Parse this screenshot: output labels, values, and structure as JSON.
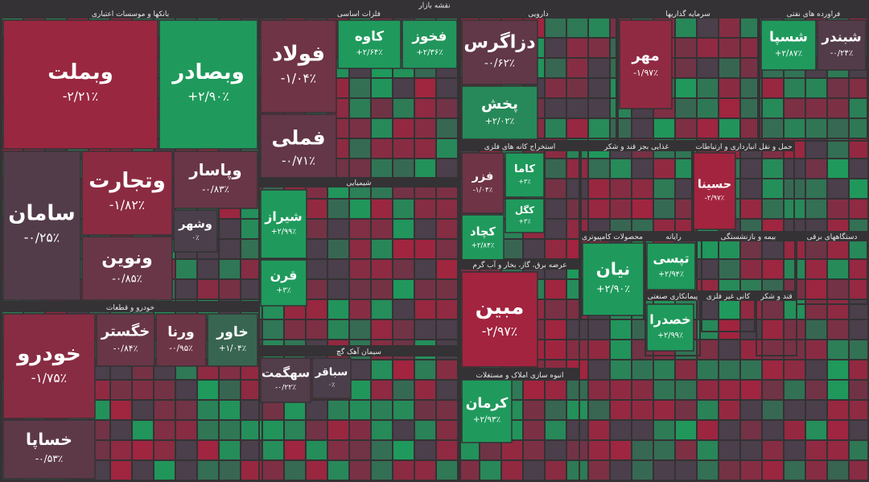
{
  "title": "نقشه بازار",
  "sectors": [
    {
      "name": "بانکها و موسسات اعتباری",
      "tiles": [
        {
          "name": "وبملت",
          "change": -2.21,
          "change_label": "-۲/۲۱٪"
        },
        {
          "name": "وبصادر",
          "change": 2.9,
          "change_label": "+۲/۹۰٪"
        },
        {
          "name": "وتجارت",
          "change": -1.82,
          "change_label": "-۱/۸۲٪"
        },
        {
          "name": "سامان",
          "change": -0.25,
          "change_label": "-۰/۲۵٪"
        },
        {
          "name": "ونوین",
          "change": -0.85,
          "change_label": "-۰/۸۵٪"
        },
        {
          "name": "وپاسار",
          "change": -0.83,
          "change_label": "-۰/۸۳٪"
        },
        {
          "name": "وشهر",
          "change": 0,
          "change_label": "۰٪"
        }
      ]
    },
    {
      "name": "فلزات اساسی",
      "tiles": [
        {
          "name": "فولاد",
          "change": -1.04,
          "change_label": "-۱/۰۴٪"
        },
        {
          "name": "فملی",
          "change": -0.71,
          "change_label": "-۰/۷۱٪"
        },
        {
          "name": "کاوه",
          "change": 2.64,
          "change_label": "+۲/۶۴٪"
        },
        {
          "name": "فخوز",
          "change": 2.36,
          "change_label": "+۲/۳۶٪"
        }
      ]
    },
    {
      "name": "دارویی",
      "tiles": [
        {
          "name": "دزاگرس",
          "change": -0.62,
          "change_label": "-۰/۶۲٪"
        },
        {
          "name": "پخش",
          "change": 2.02,
          "change_label": "+۲/۰۲٪"
        }
      ]
    },
    {
      "name": "سرمایه گذاریها",
      "tiles": [
        {
          "name": "مهر",
          "change": -1.97,
          "change_label": "-۱/۹۷٪"
        }
      ]
    },
    {
      "name": "فراورده های نفتی",
      "tiles": [
        {
          "name": "شسپا",
          "change": 2.87,
          "change_label": "+۲/۸۷٪"
        },
        {
          "name": "شبندر",
          "change": -0.24,
          "change_label": "-۰/۲۴٪"
        }
      ]
    },
    {
      "name": "شیمیایی",
      "tiles": [
        {
          "name": "شیراز",
          "change": 2.99,
          "change_label": "+۲/۹۹٪"
        },
        {
          "name": "قرن",
          "change": 3,
          "change_label": "+۳٪"
        }
      ]
    },
    {
      "name": "خودرو و قطعات",
      "tiles": [
        {
          "name": "خودرو",
          "change": -1.75,
          "change_label": "-۱/۷۵٪"
        },
        {
          "name": "خساپا",
          "change": -0.53,
          "change_label": "-۰/۵۳٪"
        },
        {
          "name": "خگستر",
          "change": -0.84,
          "change_label": "-۰/۸۴٪"
        },
        {
          "name": "ورنا",
          "change": -0.95,
          "change_label": "-۰/۹۵٪"
        },
        {
          "name": "خاور",
          "change": 1.04,
          "change_label": "+۱/۰۴٪"
        }
      ]
    },
    {
      "name": "سیمان آهک گچ",
      "tiles": [
        {
          "name": "سهگمت",
          "change": -0.22,
          "change_label": "-۰/۲۲٪"
        },
        {
          "name": "سباقر",
          "change": 0,
          "change_label": "۰٪"
        }
      ]
    },
    {
      "name": "استخراج کانه های فلزی",
      "tiles": [
        {
          "name": "فزر",
          "change": -1.04,
          "change_label": "-۱/۰۴٪"
        },
        {
          "name": "کچاد",
          "change": 2.84,
          "change_label": "+۲/۸۴٪"
        },
        {
          "name": "کاما",
          "change": 3,
          "change_label": "+۳٪"
        },
        {
          "name": "کگل",
          "change": 3,
          "change_label": "+۳٪"
        }
      ]
    },
    {
      "name": "عرضه برق، گاز، بخار و آب گرم",
      "tiles": [
        {
          "name": "مبین",
          "change": -2.97,
          "change_label": "-۲/۹۷٪"
        }
      ]
    },
    {
      "name": "انبوه سازی املاک و مستغلات",
      "tiles": [
        {
          "name": "کرمان",
          "change": 2.93,
          "change_label": "+۲/۹۳٪"
        }
      ]
    },
    {
      "name": "محصولات کامپیوتری",
      "tiles": [
        {
          "name": "نیان",
          "change": 2.9,
          "change_label": "+۲/۹۰٪"
        }
      ]
    },
    {
      "name": "رایانه",
      "tiles": [
        {
          "name": "تپسی",
          "change": 2.94,
          "change_label": "+۲/۹۴٪"
        }
      ]
    },
    {
      "name": "پیمانکاری صنعتی",
      "tiles": [
        {
          "name": "خصدرا",
          "change": 2.99,
          "change_label": "+۲/۹۹٪"
        }
      ]
    },
    {
      "name": "فعالیتهای کمکی به نهاد",
      "tiles": [
        {
          "name": "حسینا",
          "change": -2.97,
          "change_label": "-۲/۹۷٪"
        }
      ]
    },
    {
      "name": "غذایی بجز قند و شکر"
    },
    {
      "name": "حمل و نقل انبارداری و ارتباطات"
    },
    {
      "name": "بیمه و بازنشستگی"
    },
    {
      "name": "دستگاههای برقی"
    },
    {
      "name": "قند و شکر"
    },
    {
      "name": "کانی غیر فلزی"
    }
  ]
}
